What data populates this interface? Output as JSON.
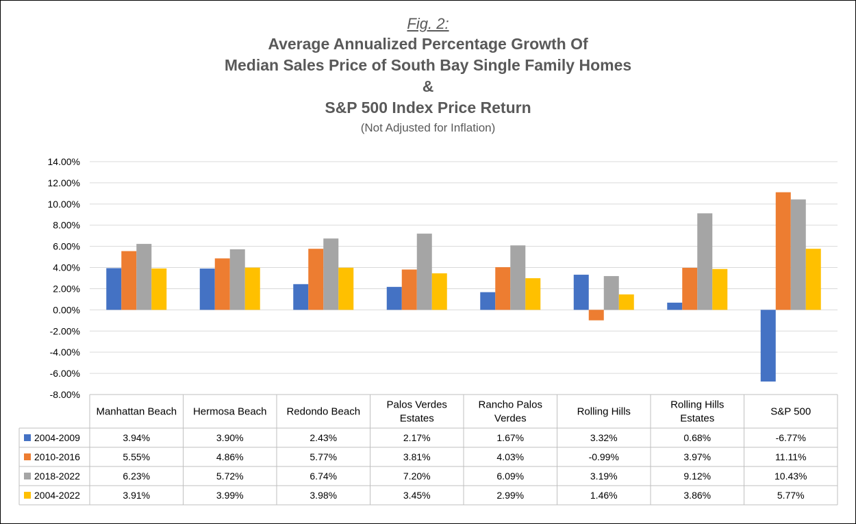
{
  "chart_data": {
    "type": "bar",
    "fig_label": "Fig. 2:",
    "title_lines": [
      "Average Annualized Percentage Growth Of",
      "Median Sales Price of South Bay Single Family Homes",
      "&",
      "S&P 500 Index Price Return"
    ],
    "subtitle": "(Not Adjusted for Inflation)",
    "categories": [
      [
        "Manhattan Beach"
      ],
      [
        "Hermosa Beach"
      ],
      [
        "Redondo Beach"
      ],
      [
        "Palos Verdes",
        "Estates"
      ],
      [
        "Rancho Palos",
        "Verdes"
      ],
      [
        "Rolling Hills"
      ],
      [
        "Rolling Hills",
        "Estates"
      ],
      [
        "S&P 500"
      ]
    ],
    "series": [
      {
        "name": "2004-2009",
        "color": "#4472C4",
        "values": [
          3.94,
          3.9,
          2.43,
          2.17,
          1.67,
          3.32,
          0.68,
          -6.77
        ]
      },
      {
        "name": "2010-2016",
        "color": "#ED7D31",
        "values": [
          5.55,
          4.86,
          5.77,
          3.81,
          4.03,
          -0.99,
          3.97,
          11.11
        ]
      },
      {
        "name": "2018-2022",
        "color": "#A5A5A5",
        "values": [
          6.23,
          5.72,
          6.74,
          7.2,
          6.09,
          3.19,
          9.12,
          10.43
        ]
      },
      {
        "name": "2004-2022",
        "color": "#FFC000",
        "values": [
          3.91,
          3.99,
          3.98,
          3.45,
          2.99,
          1.46,
          3.86,
          5.77
        ]
      }
    ],
    "ylim": [
      -8,
      14
    ],
    "ytick_step": 2,
    "ytick_labels": [
      "14.00%",
      "12.00%",
      "10.00%",
      "8.00%",
      "6.00%",
      "4.00%",
      "2.00%",
      "0.00%",
      "-2.00%",
      "-4.00%",
      "-6.00%",
      "-8.00%"
    ],
    "grid": true,
    "legend": "data-table",
    "value_suffix": "%"
  }
}
